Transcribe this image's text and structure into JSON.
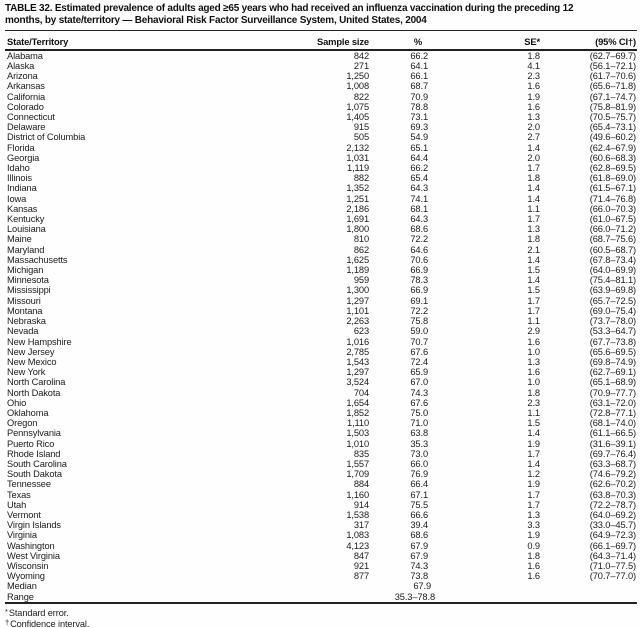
{
  "title": {
    "line1": "TABLE 32. Estimated prevalence of adults aged ≥65 years who had received an influenza vaccination during the preceding 12",
    "line2": "months, by state/territory — Behavioral Risk Factor Surveillance System, United States, 2004"
  },
  "table": {
    "columns": {
      "territory": "State/Territory",
      "sample": "Sample size",
      "pct": "%",
      "se": "SE*",
      "ci": "(95% CI†)"
    },
    "rows": [
      {
        "territory": "Alabama",
        "sample": "842",
        "pct": "66.2",
        "se": "1.8",
        "ci": "(62.7–69.7)"
      },
      {
        "territory": "Alaska",
        "sample": "271",
        "pct": "64.1",
        "se": "4.1",
        "ci": "(56.1–72.1)"
      },
      {
        "territory": "Arizona",
        "sample": "1,250",
        "pct": "66.1",
        "se": "2.3",
        "ci": "(61.7–70.6)"
      },
      {
        "territory": "Arkansas",
        "sample": "1,008",
        "pct": "68.7",
        "se": "1.6",
        "ci": "(65.6–71.8)"
      },
      {
        "territory": "California",
        "sample": "822",
        "pct": "70.9",
        "se": "1.9",
        "ci": "(67.1–74.7)"
      },
      {
        "territory": "Colorado",
        "sample": "1,075",
        "pct": "78.8",
        "se": "1.6",
        "ci": "(75.8–81.9)"
      },
      {
        "territory": "Connecticut",
        "sample": "1,405",
        "pct": "73.1",
        "se": "1.3",
        "ci": "(70.5–75.7)"
      },
      {
        "territory": "Delaware",
        "sample": "915",
        "pct": "69.3",
        "se": "2.0",
        "ci": "(65.4–73.1)"
      },
      {
        "territory": "District of Columbia",
        "sample": "505",
        "pct": "54.9",
        "se": "2.7",
        "ci": "(49.6–60.2)"
      },
      {
        "territory": "Florida",
        "sample": "2,132",
        "pct": "65.1",
        "se": "1.4",
        "ci": "(62.4–67.9)"
      },
      {
        "territory": "Georgia",
        "sample": "1,031",
        "pct": "64.4",
        "se": "2.0",
        "ci": "(60.6–68.3)"
      },
      {
        "territory": "Idaho",
        "sample": "1,119",
        "pct": "66.2",
        "se": "1.7",
        "ci": "(62.8–69.5)"
      },
      {
        "territory": "Illinois",
        "sample": "882",
        "pct": "65.4",
        "se": "1.8",
        "ci": "(61.8–69.0)"
      },
      {
        "territory": "Indiana",
        "sample": "1,352",
        "pct": "64.3",
        "se": "1.4",
        "ci": "(61.5–67.1)"
      },
      {
        "territory": "Iowa",
        "sample": "1,251",
        "pct": "74.1",
        "se": "1.4",
        "ci": "(71.4–76.8)"
      },
      {
        "territory": "Kansas",
        "sample": "2,186",
        "pct": "68.1",
        "se": "1.1",
        "ci": "(66.0–70.3)"
      },
      {
        "territory": "Kentucky",
        "sample": "1,691",
        "pct": "64.3",
        "se": "1.7",
        "ci": "(61.0–67.5)"
      },
      {
        "territory": "Louisiana",
        "sample": "1,800",
        "pct": "68.6",
        "se": "1.3",
        "ci": "(66.0–71.2)"
      },
      {
        "territory": "Maine",
        "sample": "810",
        "pct": "72.2",
        "se": "1.8",
        "ci": "(68.7–75.6)"
      },
      {
        "territory": "Maryland",
        "sample": "862",
        "pct": "64.6",
        "se": "2.1",
        "ci": "(60.5–68.7)"
      },
      {
        "territory": "Massachusetts",
        "sample": "1,625",
        "pct": "70.6",
        "se": "1.4",
        "ci": "(67.8–73.4)"
      },
      {
        "territory": "Michigan",
        "sample": "1,189",
        "pct": "66.9",
        "se": "1.5",
        "ci": "(64.0–69.9)"
      },
      {
        "territory": "Minnesota",
        "sample": "959",
        "pct": "78.3",
        "se": "1.4",
        "ci": "(75.4–81.1)"
      },
      {
        "territory": "Mississippi",
        "sample": "1,300",
        "pct": "66.9",
        "se": "1.5",
        "ci": "(63.9–69.8)"
      },
      {
        "territory": "Missouri",
        "sample": "1,297",
        "pct": "69.1",
        "se": "1.7",
        "ci": "(65.7–72.5)"
      },
      {
        "territory": "Montana",
        "sample": "1,101",
        "pct": "72.2",
        "se": "1.7",
        "ci": "(69.0–75.4)"
      },
      {
        "territory": "Nebraska",
        "sample": "2,263",
        "pct": "75.8",
        "se": "1.1",
        "ci": "(73.7–78.0)"
      },
      {
        "territory": "Nevada",
        "sample": "623",
        "pct": "59.0",
        "se": "2.9",
        "ci": "(53.3–64.7)"
      },
      {
        "territory": "New Hampshire",
        "sample": "1,016",
        "pct": "70.7",
        "se": "1.6",
        "ci": "(67.7–73.8)"
      },
      {
        "territory": "New Jersey",
        "sample": "2,785",
        "pct": "67.6",
        "se": "1.0",
        "ci": "(65.6–69.5)"
      },
      {
        "territory": "New Mexico",
        "sample": "1,543",
        "pct": "72.4",
        "se": "1.3",
        "ci": "(69.8–74.9)"
      },
      {
        "territory": "New York",
        "sample": "1,297",
        "pct": "65.9",
        "se": "1.6",
        "ci": "(62.7–69.1)"
      },
      {
        "territory": "North Carolina",
        "sample": "3,524",
        "pct": "67.0",
        "se": "1.0",
        "ci": "(65.1–68.9)"
      },
      {
        "territory": "North Dakota",
        "sample": "704",
        "pct": "74.3",
        "se": "1.8",
        "ci": "(70.9–77.7)"
      },
      {
        "territory": "Ohio",
        "sample": "1,654",
        "pct": "67.6",
        "se": "2.3",
        "ci": "(63.1–72.0)"
      },
      {
        "territory": "Oklahoma",
        "sample": "1,852",
        "pct": "75.0",
        "se": "1.1",
        "ci": "(72.8–77.1)"
      },
      {
        "territory": "Oregon",
        "sample": "1,110",
        "pct": "71.0",
        "se": "1.5",
        "ci": "(68.1–74.0)"
      },
      {
        "territory": "Pennsylvania",
        "sample": "1,503",
        "pct": "63.8",
        "se": "1.4",
        "ci": "(61.1–66.5)"
      },
      {
        "territory": "Puerto Rico",
        "sample": "1,010",
        "pct": "35.3",
        "se": "1.9",
        "ci": "(31.6–39.1)"
      },
      {
        "territory": "Rhode Island",
        "sample": "835",
        "pct": "73.0",
        "se": "1.7",
        "ci": "(69.7–76.4)"
      },
      {
        "territory": "South Carolina",
        "sample": "1,557",
        "pct": "66.0",
        "se": "1.4",
        "ci": "(63.3–68.7)"
      },
      {
        "territory": "South Dakota",
        "sample": "1,709",
        "pct": "76.9",
        "se": "1.2",
        "ci": "(74.6–79.2)"
      },
      {
        "territory": "Tennessee",
        "sample": "884",
        "pct": "66.4",
        "se": "1.9",
        "ci": "(62.6–70.2)"
      },
      {
        "territory": "Texas",
        "sample": "1,160",
        "pct": "67.1",
        "se": "1.7",
        "ci": "(63.8–70.3)"
      },
      {
        "territory": "Utah",
        "sample": "914",
        "pct": "75.5",
        "se": "1.7",
        "ci": "(72.2–78.7)"
      },
      {
        "territory": "Vermont",
        "sample": "1,538",
        "pct": "66.6",
        "se": "1.3",
        "ci": "(64.0–69.2)"
      },
      {
        "territory": "Virgin Islands",
        "sample": "317",
        "pct": "39.4",
        "se": "3.3",
        "ci": "(33.0–45.7)"
      },
      {
        "territory": "Virginia",
        "sample": "1,083",
        "pct": "68.6",
        "se": "1.9",
        "ci": "(64.9–72.3)"
      },
      {
        "territory": "Washington",
        "sample": "4,123",
        "pct": "67.9",
        "se": "0.9",
        "ci": "(66.1–69.7)"
      },
      {
        "territory": "West Virginia",
        "sample": "847",
        "pct": "67.9",
        "se": "1.8",
        "ci": "(64.3–71.4)"
      },
      {
        "territory": "Wisconsin",
        "sample": "921",
        "pct": "74.3",
        "se": "1.6",
        "ci": "(71.0–77.5)"
      },
      {
        "territory": "Wyoming",
        "sample": "877",
        "pct": "73.8",
        "se": "1.6",
        "ci": "(70.7–77.0)"
      }
    ],
    "summary": [
      {
        "label": "Median",
        "value": "67.9"
      },
      {
        "label": "Range",
        "value": "35.3–78.8"
      }
    ]
  },
  "footnotes": [
    {
      "marker": "*",
      "text": "Standard error."
    },
    {
      "marker": "†",
      "text": "Confidence interval."
    }
  ]
}
